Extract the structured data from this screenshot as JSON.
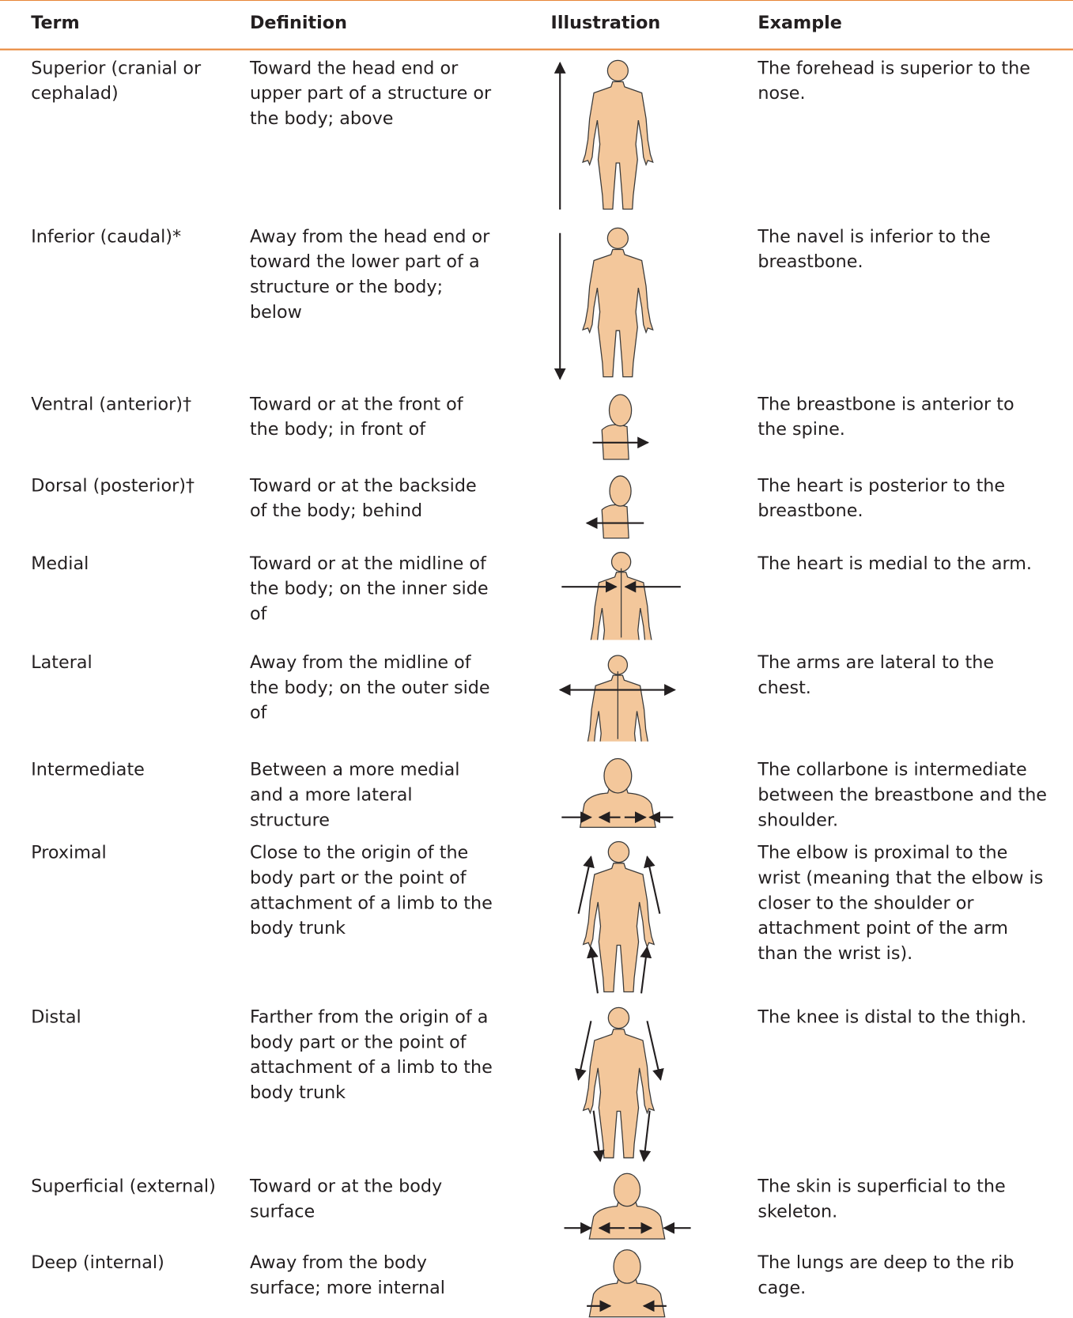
{
  "table": {
    "header": [
      "Term",
      "Definition",
      "Illustration",
      "Example"
    ],
    "rows": [
      [
        "Superior (cranial or cephalad)",
        "Toward the head end or upper part of a structure or the body; above",
        "The forehead is superior to the nose."
      ],
      [
        "Inferior (caudal)*",
        "Away from the head end or toward the lower part of a structure or the body; below",
        "The navel is inferior to the breastbone."
      ],
      [
        "Ventral (anterior)†",
        "Toward or at the front of the body; in front of",
        "The breastbone is anterior to the spine."
      ],
      [
        "Dorsal (posterior)†",
        "Toward or at the backside of the body; behind",
        "The heart is posterior to the breastbone."
      ],
      [
        "Medial",
        "Toward or at the midline of the body; on the inner side of",
        "The heart is medial to the arm."
      ],
      [
        "Lateral",
        "Away from the midline of the body; on the outer side of",
        "The arms are lateral to the chest."
      ],
      [
        "Intermediate",
        "Between a more medial and a more lateral structure",
        "The collarbone is intermediate between the breastbone and the shoulder."
      ],
      [
        "Proximal",
        "Close to the origin of the body part or the point of attachment of a limb to the body trunk",
        "The elbow is proximal to the wrist (meaning that the elbow is closer to the shoulder or attachment point of the arm than the wrist is)."
      ],
      [
        "Distal",
        "Farther from the origin of a body part or the point of attachment of a limb to the body trunk",
        "The knee is distal to the thigh."
      ],
      [
        "Superficial (external)",
        "Toward or at the body surface",
        "The skin is superficial to the skeleton."
      ],
      [
        "Deep (internal)",
        "Away from the body surface; more internal",
        "The lungs are deep to the rib cage."
      ]
    ]
  }
}
